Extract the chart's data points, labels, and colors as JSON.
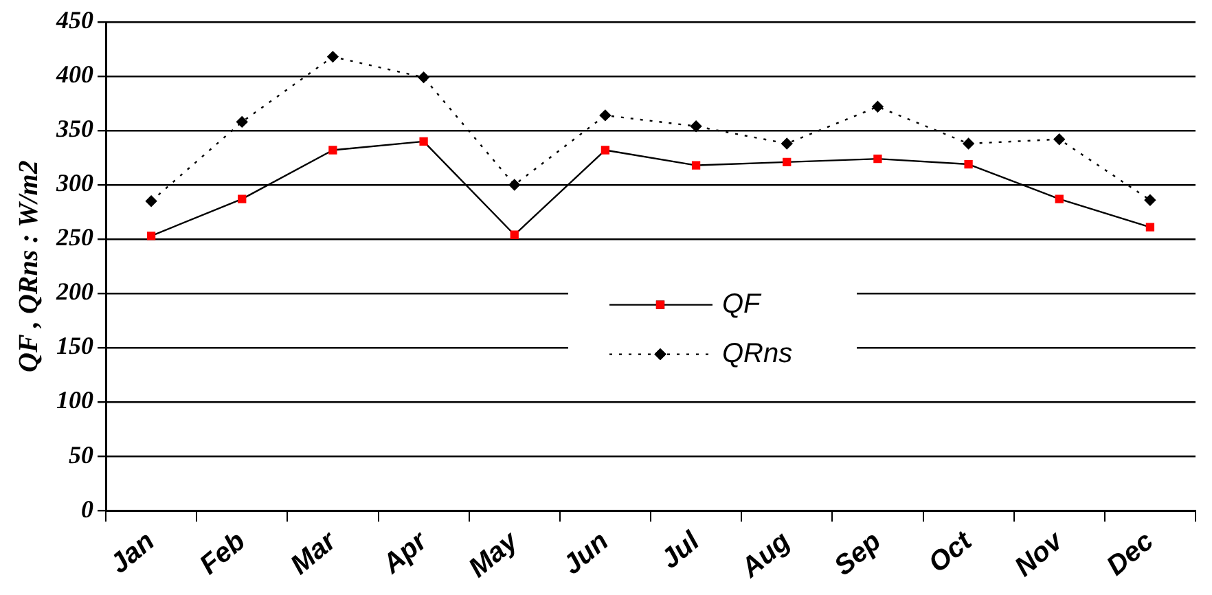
{
  "chart_data": {
    "type": "line",
    "ylabel": "QF , QRns : W/m2",
    "categories": [
      "Jan",
      "Feb",
      "Mar",
      "Apr",
      "May",
      "Jun",
      "Jul",
      "Aug",
      "Sep",
      "Oct",
      "Nov",
      "Dec"
    ],
    "series": [
      {
        "name": "QF",
        "color": "#ff0000",
        "marker": "square",
        "line_style": "solid",
        "values": [
          253,
          287,
          332,
          340,
          254,
          332,
          318,
          321,
          324,
          319,
          287,
          261
        ]
      },
      {
        "name": "QRns",
        "color": "#000000",
        "marker": "diamond",
        "line_style": "dotted",
        "values": [
          285,
          358,
          418,
          399,
          300,
          364,
          354,
          338,
          372,
          338,
          342,
          286
        ]
      }
    ],
    "ylim": [
      0,
      450
    ],
    "yticks": [
      0,
      50,
      100,
      150,
      200,
      250,
      300,
      350,
      400,
      450
    ],
    "grid": "y",
    "legend": "center"
  }
}
